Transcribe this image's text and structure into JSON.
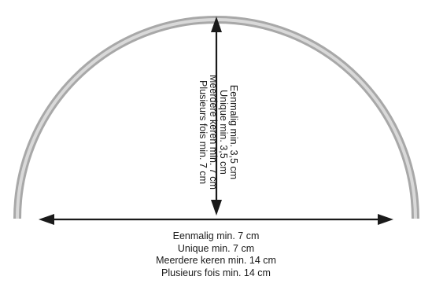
{
  "vertical_label": {
    "lines": [
      "Eenmalig min. 3,5 cm",
      "Unique min. 3,5 cm",
      "Meerdere keren min. 7 cm",
      "Plusieurs fois  min. 7 cm"
    ]
  },
  "horizontal_label": {
    "lines": [
      "Eenmalig min. 7 cm",
      "Unique min. 7 cm",
      "Meerdere keren min. 14 cm",
      "Plusieurs  fois  min. 14 cm"
    ]
  },
  "colors": {
    "arc_outer": "#a8a8a8",
    "arc_inner": "#d9d9d9",
    "arrow": "#1a1a1a",
    "text": "#1a1a1a"
  }
}
